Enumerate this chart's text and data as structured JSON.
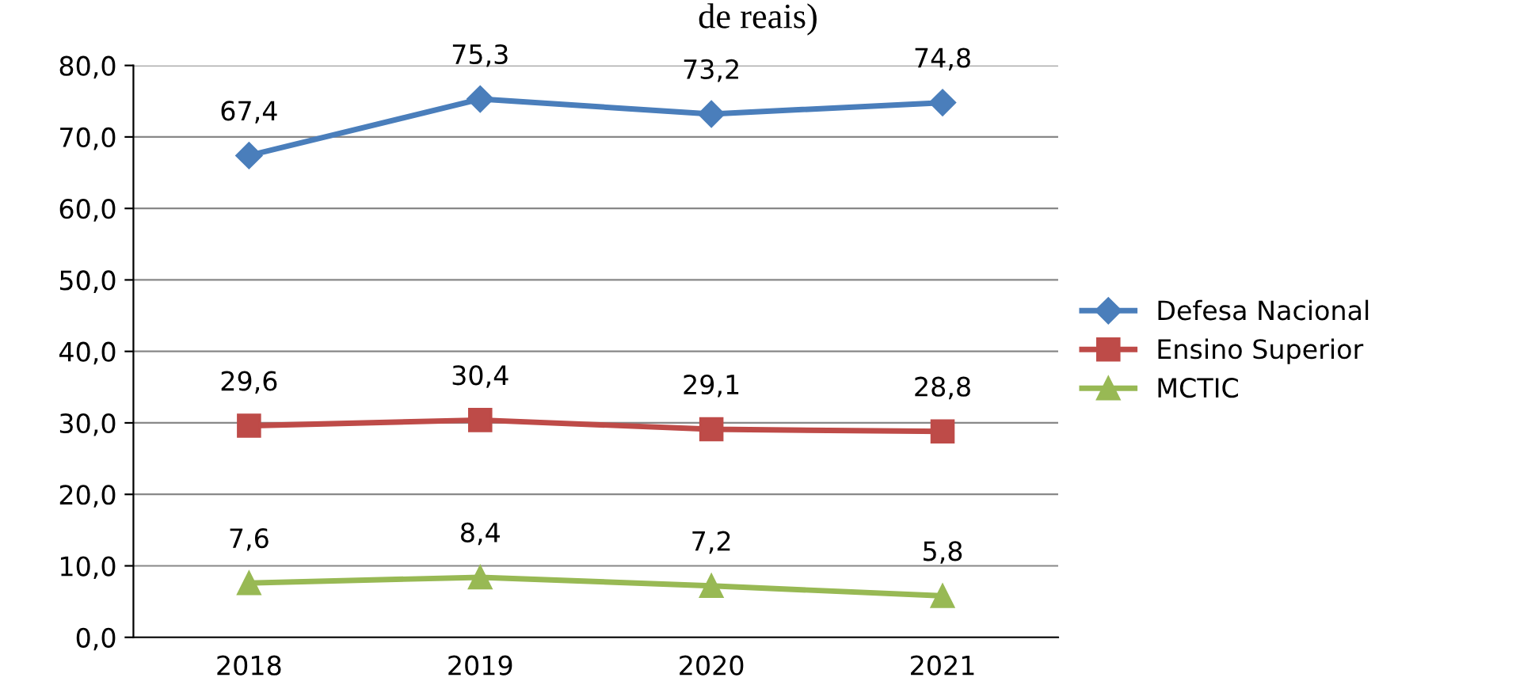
{
  "chart_data": {
    "type": "line",
    "title": "de reais)",
    "categories": [
      "2018",
      "2019",
      "2020",
      "2021"
    ],
    "series": [
      {
        "name": "Defesa Nacional",
        "color": "#4a7ebb",
        "marker": "diamond",
        "values": [
          67.4,
          75.3,
          73.2,
          74.8
        ],
        "value_labels": [
          "67,4",
          "75,3",
          "73,2",
          "74,8"
        ]
      },
      {
        "name": "Ensino Superior",
        "color": "#be4b48",
        "marker": "square",
        "values": [
          29.6,
          30.4,
          29.1,
          28.8
        ],
        "value_labels": [
          "29,6",
          "30,4",
          "29,1",
          "28,8"
        ]
      },
      {
        "name": "MCTIC",
        "color": "#98b954",
        "marker": "triangle",
        "values": [
          7.6,
          8.4,
          7.2,
          5.8
        ],
        "value_labels": [
          "7,6",
          "8,4",
          "7,2",
          "5,8"
        ]
      }
    ],
    "ylim": [
      0,
      80
    ],
    "yticks": [
      {
        "value": 0,
        "label": "0,0"
      },
      {
        "value": 10,
        "label": "10,0"
      },
      {
        "value": 20,
        "label": "20,0"
      },
      {
        "value": 30,
        "label": "30,0"
      },
      {
        "value": 40,
        "label": "40,0"
      },
      {
        "value": 50,
        "label": "50,0"
      },
      {
        "value": 60,
        "label": "60,0"
      },
      {
        "value": 70,
        "label": "70,0"
      },
      {
        "value": 80,
        "label": "80,0"
      }
    ],
    "grid": "y",
    "legend": "right"
  }
}
